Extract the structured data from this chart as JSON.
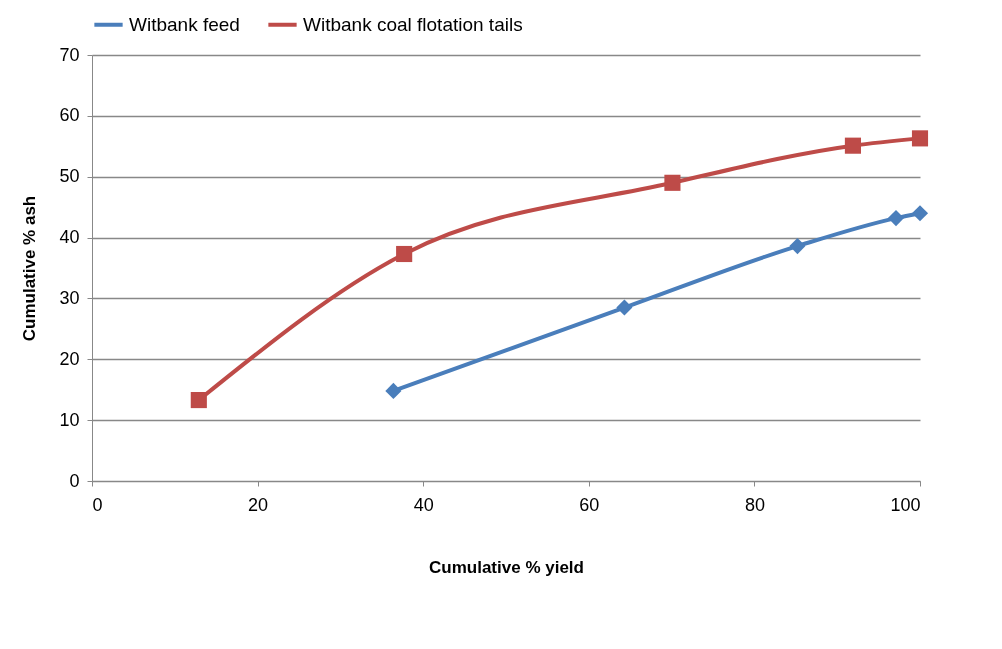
{
  "chart_data": {
    "type": "line",
    "xlabel": "Cumulative % yield",
    "ylabel": "Cumulative % ash",
    "series": [
      {
        "name": "Witbank feed",
        "color": "#4a7ebb",
        "marker": "diamond",
        "x": [
          36.4,
          64.3,
          85.2,
          97.1,
          100
        ],
        "values": [
          14.8,
          28.5,
          38.6,
          43.2,
          44.0
        ]
      },
      {
        "name": "Witbank coal flotation tails",
        "color": "#be4b48",
        "marker": "square",
        "x": [
          12.9,
          37.7,
          70.1,
          91.9,
          100
        ],
        "values": [
          13.3,
          37.3,
          49.0,
          55.1,
          56.3
        ]
      }
    ],
    "xlim": [
      0,
      100
    ],
    "xticks": [
      0,
      20,
      40,
      60,
      80,
      100
    ],
    "ylim": [
      0,
      70
    ],
    "yticks": [
      0,
      10,
      20,
      30,
      40,
      50,
      60,
      70
    ],
    "grid": "y",
    "legend": "top",
    "line_style": "solid"
  }
}
